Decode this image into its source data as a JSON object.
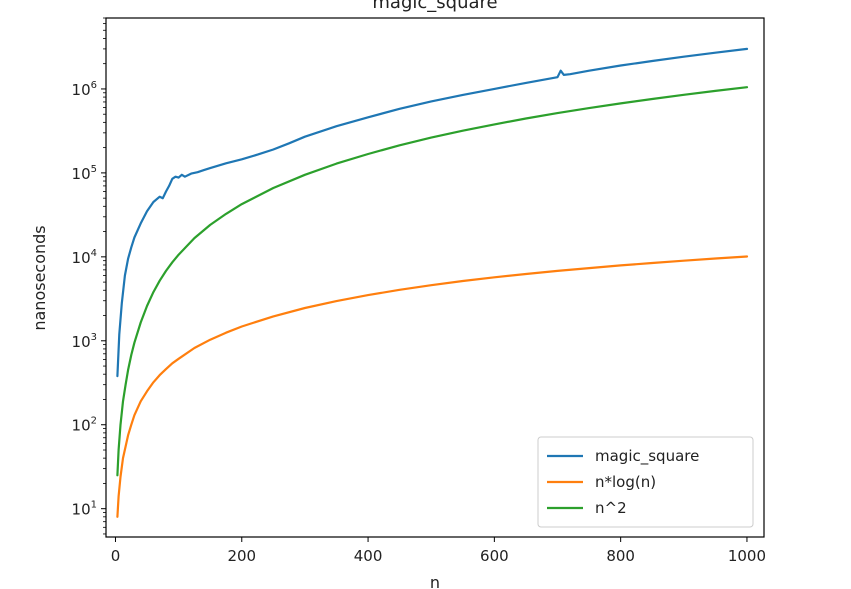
{
  "chart_data": {
    "type": "line",
    "title": "magic_square",
    "xlabel": "n",
    "ylabel": "nanoseconds",
    "yscale": "log",
    "xlim": [
      -15,
      1027
    ],
    "ylim": [
      4.6,
      7000000
    ],
    "grid": false,
    "legend_position": "lower-right",
    "xticks": [
      {
        "value": 0,
        "label": "0"
      },
      {
        "value": 200,
        "label": "200"
      },
      {
        "value": 400,
        "label": "400"
      },
      {
        "value": 600,
        "label": "600"
      },
      {
        "value": 800,
        "label": "800"
      },
      {
        "value": 1000,
        "label": "1000"
      }
    ],
    "yticks": [
      {
        "value": 10,
        "base": "10",
        "exp": "1"
      },
      {
        "value": 100,
        "base": "10",
        "exp": "2"
      },
      {
        "value": 1000,
        "base": "10",
        "exp": "3"
      },
      {
        "value": 10000,
        "base": "10",
        "exp": "4"
      },
      {
        "value": 100000,
        "base": "10",
        "exp": "5"
      },
      {
        "value": 1000000,
        "base": "10",
        "exp": "6"
      }
    ],
    "series": [
      {
        "name": "magic_square",
        "color": "#1f77b4",
        "x": [
          3,
          6,
          10,
          15,
          20,
          25,
          30,
          40,
          50,
          60,
          70,
          75,
          80,
          85,
          90,
          95,
          100,
          105,
          110,
          120,
          130,
          140,
          150,
          175,
          200,
          225,
          250,
          275,
          300,
          350,
          400,
          450,
          500,
          550,
          600,
          650,
          700,
          705,
          710,
          720,
          750,
          800,
          850,
          900,
          950,
          1000
        ],
        "y": [
          380,
          1200,
          2800,
          6000,
          9500,
          13000,
          17000,
          25000,
          35000,
          45000,
          52000,
          50000,
          60000,
          70000,
          85000,
          90000,
          88000,
          95000,
          90000,
          98000,
          102000,
          108000,
          114000,
          130000,
          145000,
          165000,
          190000,
          225000,
          270000,
          360000,
          460000,
          580000,
          710000,
          850000,
          1000000,
          1180000,
          1380000,
          1650000,
          1470000,
          1500000,
          1650000,
          1900000,
          2150000,
          2420000,
          2700000,
          3000000
        ]
      },
      {
        "name": "n*log(n)",
        "color": "#ff7f0e",
        "x": [
          3,
          5,
          8,
          12,
          16,
          20,
          25,
          30,
          40,
          50,
          60,
          70,
          80,
          90,
          100,
          125,
          150,
          175,
          200,
          250,
          300,
          350,
          400,
          450,
          500,
          550,
          600,
          650,
          700,
          750,
          800,
          850,
          900,
          950,
          1000
        ],
        "y": [
          8,
          14,
          24,
          40,
          55,
          75,
          100,
          130,
          190,
          250,
          320,
          390,
          460,
          540,
          610,
          820,
          1030,
          1250,
          1480,
          1950,
          2460,
          2970,
          3500,
          4050,
          4600,
          5150,
          5700,
          6250,
          6800,
          7350,
          7900,
          8450,
          9000,
          9550,
          10100
        ]
      },
      {
        "name": "n^2",
        "color": "#2ca02c",
        "x": [
          3,
          5,
          8,
          12,
          16,
          20,
          25,
          30,
          40,
          50,
          60,
          70,
          80,
          90,
          100,
          125,
          150,
          175,
          200,
          250,
          300,
          350,
          400,
          450,
          500,
          550,
          600,
          650,
          700,
          750,
          800,
          850,
          900,
          950,
          1000
        ],
        "y": [
          25,
          50,
          100,
          190,
          300,
          450,
          680,
          950,
          1650,
          2600,
          3800,
          5200,
          6800,
          8600,
          10600,
          16700,
          24000,
          32500,
          42500,
          66000,
          95000,
          129000,
          168000,
          213000,
          263000,
          318000,
          378000,
          444000,
          515000,
          591000,
          672000,
          759000,
          851000,
          948000,
          1050000
        ]
      }
    ]
  }
}
